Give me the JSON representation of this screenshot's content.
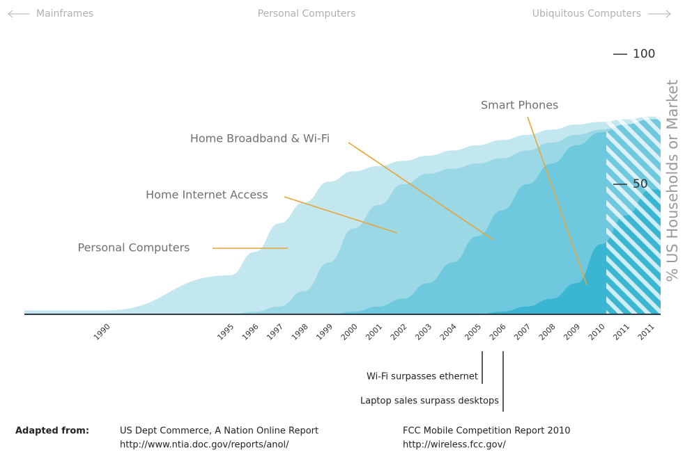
{
  "chart_data": {
    "type": "area",
    "eras": [
      "Mainframes",
      "Personal Computers",
      "Ubiquitous Computers"
    ],
    "categories": [
      "1990",
      "1995",
      "1996",
      "1997",
      "1998",
      "1999",
      "2000",
      "2001",
      "2002",
      "2003",
      "2004",
      "2005",
      "2006",
      "2007",
      "2008",
      "2009",
      "2010",
      "2011",
      "2011"
    ],
    "series": [
      {
        "name": "Personal Computers",
        "color": "#c2e7ef",
        "values": [
          1.5,
          15,
          24,
          35,
          43,
          51,
          55,
          57,
          59,
          61,
          63,
          65,
          67,
          69,
          71,
          73,
          74,
          75,
          76
        ]
      },
      {
        "name": "Home Internet Access",
        "color": "#9ad8e6",
        "values": [
          0,
          0,
          1,
          3,
          9,
          20,
          33,
          42,
          50,
          54,
          56,
          58,
          60,
          63,
          66,
          69,
          71,
          73,
          75
        ]
      },
      {
        "name": "Home Broadband & Wi-Fi",
        "color": "#6fc9de",
        "values": [
          0,
          0,
          0,
          0,
          0,
          0,
          1,
          3,
          6,
          12,
          20,
          30,
          40,
          50,
          58,
          65,
          70,
          73,
          75
        ]
      },
      {
        "name": "Smart Phones",
        "color": "#3ab6d2",
        "values": [
          0,
          0,
          0,
          0,
          0,
          0,
          0,
          0,
          0,
          0,
          0,
          0,
          1,
          3,
          6,
          12,
          27,
          38,
          48
        ]
      }
    ],
    "ylim": [
      0,
      100
    ],
    "yticks": [
      50,
      100
    ],
    "y_label": "% US Households or Market",
    "milestones": [
      "Wi-Fi surpasses ethernet",
      "Laptop sales surpass desktops"
    ],
    "sources": {
      "label": "Adapted from:",
      "items": [
        [
          "US Dept Commerce, A Nation Online Report",
          "http://www.ntia.doc.gov/reports/anol/"
        ],
        [
          "FCC Mobile Competition Report 2010",
          "http://wireless.fcc.gov/"
        ]
      ]
    }
  }
}
